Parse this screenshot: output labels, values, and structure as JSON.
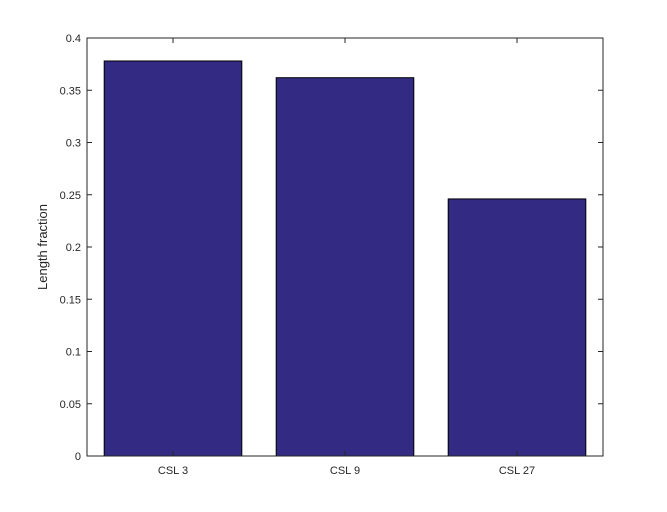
{
  "chart_data": {
    "type": "bar",
    "title": "",
    "xlabel": "",
    "ylabel": "Length fraction",
    "categories": [
      "CSL 3",
      "CSL 9",
      "CSL 27"
    ],
    "values": [
      0.378,
      0.362,
      0.246
    ],
    "ylim": [
      0,
      0.4
    ],
    "yticks": [
      0,
      0.05,
      0.1,
      0.15,
      0.2,
      0.25,
      0.3,
      0.35,
      0.4
    ],
    "ytick_labels": [
      "0",
      "0.05",
      "0.1",
      "0.15",
      "0.2",
      "0.25",
      "0.3",
      "0.35",
      "0.4"
    ],
    "grid": false,
    "legend": "none",
    "colors": {
      "bar": "#332a83",
      "bar_edge": "#000000",
      "axis": "#262626"
    }
  }
}
